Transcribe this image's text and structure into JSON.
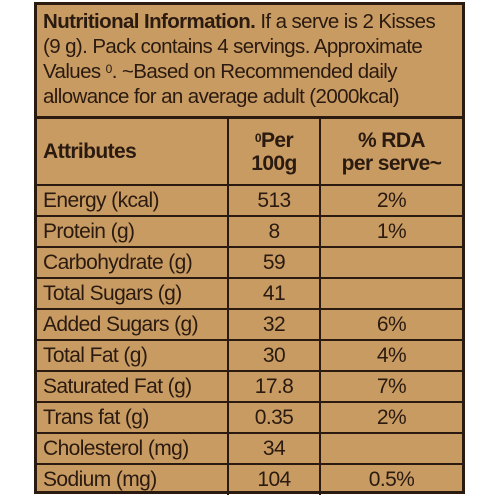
{
  "intro": {
    "title": "Nutritional Information.",
    "text": " If a serve is 2 Kisses (9 g). Pack contains 4 servings. Approximate Values ",
    "marker": "0",
    "text2": ". ~Based on Recommended daily allowance for an average adult (2000kcal)"
  },
  "table": {
    "headers": {
      "attributes": "Attributes",
      "per_marker": "0",
      "per_line1": "Per",
      "per_line2": "100g",
      "rda_line1": "% RDA",
      "rda_line2": "per serve~"
    },
    "rows": [
      {
        "attribute": "Energy (kcal)",
        "per100g": "513",
        "rda": "2%"
      },
      {
        "attribute": "Protein (g)",
        "per100g": "8",
        "rda": "1%"
      },
      {
        "attribute": "Carbohydrate (g)",
        "per100g": "59",
        "rda": ""
      },
      {
        "attribute": "Total Sugars (g)",
        "per100g": "41",
        "rda": ""
      },
      {
        "attribute": "Added Sugars (g)",
        "per100g": "32",
        "rda": "6%"
      },
      {
        "attribute": "Total Fat (g)",
        "per100g": "30",
        "rda": "4%"
      },
      {
        "attribute": "Saturated Fat (g)",
        "per100g": "17.8",
        "rda": "7%"
      },
      {
        "attribute": "Trans fat (g)",
        "per100g": "0.35",
        "rda": "2%"
      },
      {
        "attribute": "Cholesterol (mg)",
        "per100g": "34",
        "rda": ""
      },
      {
        "attribute": "Sodium (mg)",
        "per100g": "104",
        "rda": "0.5%"
      }
    ]
  },
  "colors": {
    "background": "#c89b62",
    "ink": "#2a1a10"
  }
}
